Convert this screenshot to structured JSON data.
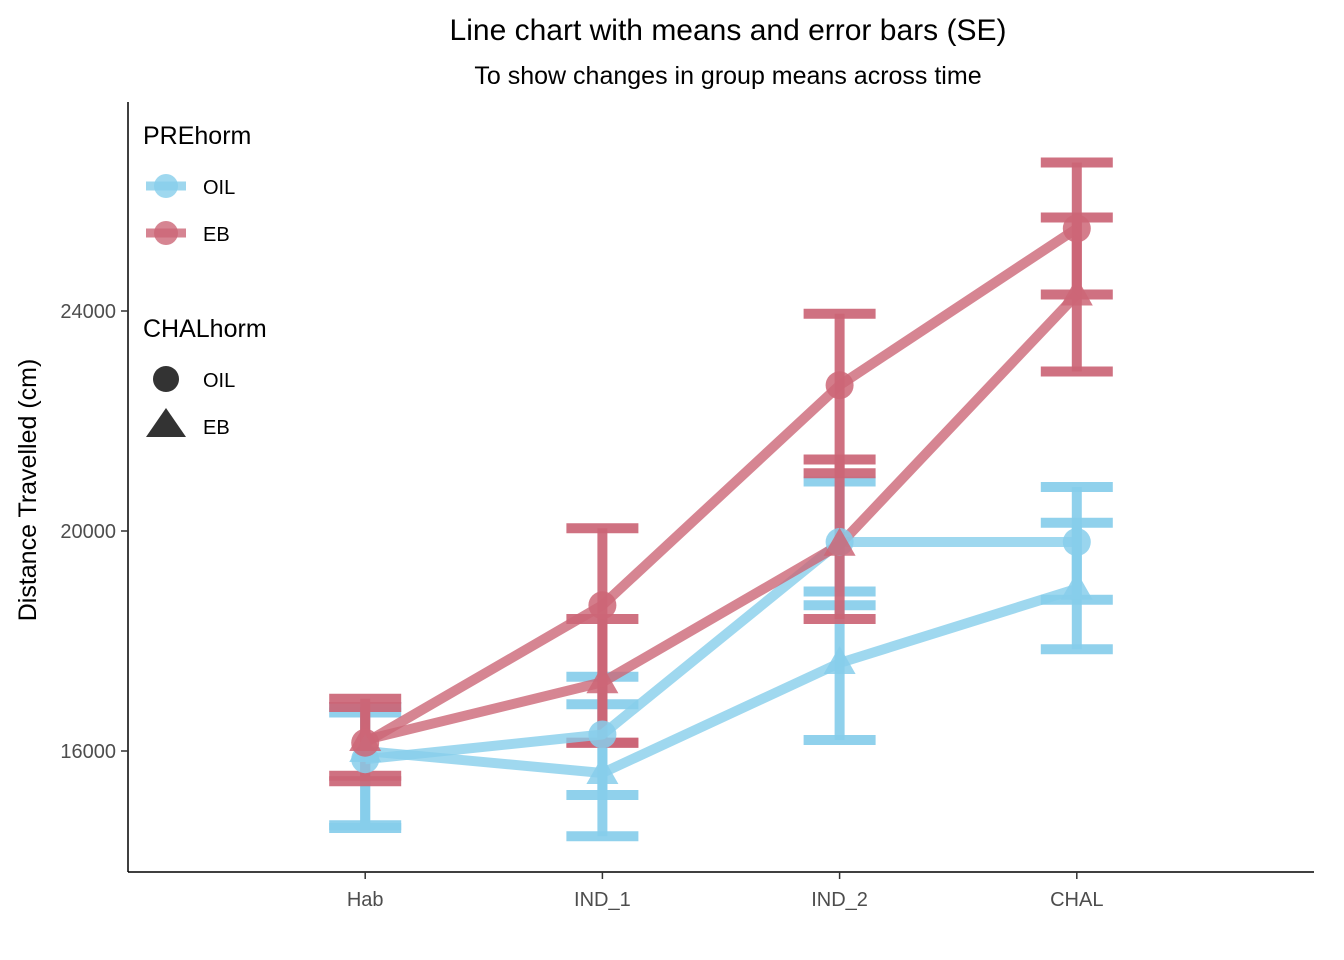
{
  "chart_data": {
    "type": "line",
    "title": "Line chart with means and error bars (SE)",
    "subtitle": "To show changes in group means across time",
    "xlabel": "",
    "ylabel": "Distance Travelled (cm)",
    "categories": [
      "Hab",
      "IND_1",
      "IND_2",
      "CHAL"
    ],
    "y_ticks": [
      16000,
      20000,
      24000
    ],
    "y_tick_labels": [
      "16000",
      "20000",
      "24000"
    ],
    "ylim": [
      13800,
      27800
    ],
    "grid": false,
    "legend_position": "top-left",
    "legends": [
      {
        "title": "PREhorm",
        "entries": [
          {
            "label": "OIL",
            "color": "#87CEEB"
          },
          {
            "label": "EB",
            "color": "#CC6677"
          }
        ]
      },
      {
        "title": "CHALhorm",
        "entries": [
          {
            "label": "OIL",
            "shape": "circle"
          },
          {
            "label": "EB",
            "shape": "triangle"
          }
        ]
      }
    ],
    "colors": {
      "OIL": "#87CEEB",
      "EB": "#CC6677",
      "shape_key": "#333333"
    },
    "series": [
      {
        "prehorm": "OIL",
        "chalhorm": "OIL",
        "values": [
          15850,
          16300,
          19800,
          19800
        ],
        "lower": [
          14600,
          15200,
          18900,
          18750
        ],
        "upper": [
          16800,
          17350,
          20900,
          20800
        ]
      },
      {
        "prehorm": "OIL",
        "chalhorm": "EB",
        "values": [
          16000,
          15600,
          17600,
          18950
        ],
        "lower": [
          14650,
          14450,
          16200,
          17850
        ],
        "upper": [
          16700,
          16850,
          18650,
          20150
        ]
      },
      {
        "prehorm": "EB",
        "chalhorm": "OIL",
        "values": [
          16150,
          18650,
          22650,
          25500
        ],
        "lower": [
          15550,
          16150,
          21050,
          24300
        ],
        "upper": [
          16950,
          20050,
          23950,
          26700
        ]
      },
      {
        "prehorm": "EB",
        "chalhorm": "EB",
        "values": [
          16200,
          17250,
          19750,
          24300
        ],
        "lower": [
          15450,
          16150,
          18400,
          22900
        ],
        "upper": [
          16800,
          18400,
          21300,
          25700
        ]
      }
    ]
  }
}
